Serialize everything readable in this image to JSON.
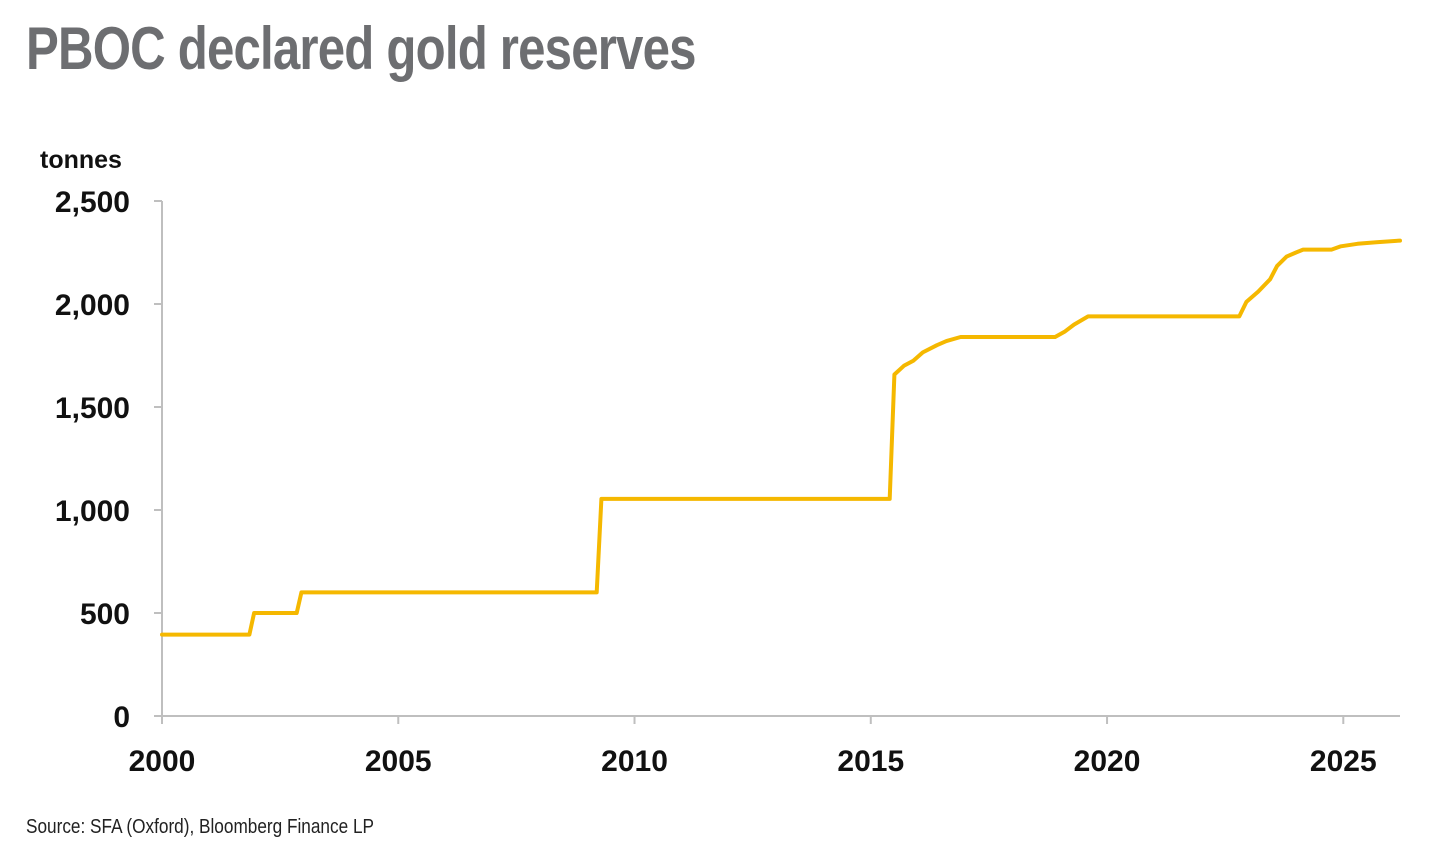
{
  "title": "PBOC declared gold reserves",
  "source": "Source: SFA (Oxford), Bloomberg Finance LP",
  "colors": {
    "line": "#f5b800",
    "title": "#6d6e71",
    "axis": "#bfbfbf",
    "text": "#111111"
  },
  "chart_data": {
    "type": "line",
    "title": "PBOC declared gold reserves",
    "xlabel": "",
    "ylabel": "tonnes",
    "xlim": [
      2000,
      2026.2
    ],
    "ylim": [
      0,
      2500
    ],
    "x_ticks": [
      2000,
      2005,
      2010,
      2015,
      2020,
      2025
    ],
    "y_ticks": [
      0,
      500,
      1000,
      1500,
      2000,
      2500
    ],
    "y_tick_labels": [
      "0",
      "500",
      "1,000",
      "1,500",
      "2,000",
      "2,500"
    ],
    "grid": false,
    "series": [
      {
        "points": [
          [
            2000.0,
            395
          ],
          [
            2001.85,
            395
          ],
          [
            2001.95,
            500
          ],
          [
            2002.85,
            500
          ],
          [
            2002.95,
            600
          ],
          [
            2009.2,
            600
          ],
          [
            2009.3,
            1054
          ],
          [
            2015.4,
            1054
          ],
          [
            2015.5,
            1658
          ],
          [
            2015.7,
            1700
          ],
          [
            2015.9,
            1725
          ],
          [
            2016.1,
            1765
          ],
          [
            2016.4,
            1800
          ],
          [
            2016.6,
            1820
          ],
          [
            2016.9,
            1840
          ],
          [
            2018.9,
            1840
          ],
          [
            2019.1,
            1865
          ],
          [
            2019.3,
            1900
          ],
          [
            2019.6,
            1940
          ],
          [
            2022.8,
            1940
          ],
          [
            2022.95,
            2010
          ],
          [
            2023.2,
            2060
          ],
          [
            2023.45,
            2120
          ],
          [
            2023.6,
            2185
          ],
          [
            2023.8,
            2230
          ],
          [
            2024.0,
            2250
          ],
          [
            2024.15,
            2264
          ],
          [
            2024.75,
            2264
          ],
          [
            2024.95,
            2280
          ],
          [
            2025.3,
            2292
          ],
          [
            2025.7,
            2300
          ],
          [
            2026.2,
            2308
          ]
        ]
      }
    ]
  }
}
